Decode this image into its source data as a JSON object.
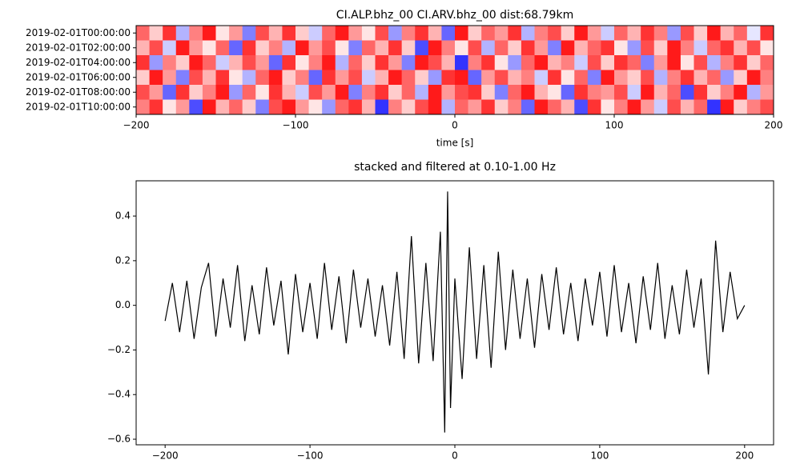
{
  "chart_data": [
    {
      "type": "heatmap",
      "title": "CI.ALP.bhz_00 CI.ARV.bhz_00  dist:68.79km",
      "xlabel": "time [s]",
      "categories": [
        "2019-02-01T00:00:00",
        "2019-02-01T02:00:00",
        "2019-02-01T04:00:00",
        "2019-02-01T06:00:00",
        "2019-02-01T08:00:00",
        "2019-02-01T10:00:00"
      ],
      "colormap": [
        "#0000ff",
        "#ffffff",
        "#ff0000"
      ],
      "clim": [
        -1,
        1
      ],
      "values": [
        [
          0.6,
          0.2,
          0.8,
          -0.3,
          0.5,
          0.9,
          0.1,
          0.4,
          -0.5,
          0.7,
          0.3,
          0.8,
          0.2,
          -0.2,
          0.6,
          0.9,
          0.4,
          0.1,
          0.7,
          -0.4,
          0.5,
          0.8,
          0.3,
          -0.6,
          0.9,
          0.2,
          0.6,
          0.4,
          0.8,
          -0.3,
          0.5,
          0.7,
          0.2,
          0.9,
          0.4,
          -0.2,
          0.6,
          0.3,
          0.8,
          0.5,
          -0.4,
          0.7,
          0.2,
          0.9,
          0.3,
          0.6,
          -0.1,
          0.8
        ],
        [
          0.3,
          0.7,
          -0.2,
          0.9,
          0.4,
          0.1,
          0.6,
          -0.6,
          0.8,
          0.2,
          0.5,
          -0.3,
          0.9,
          0.4,
          0.7,
          0.1,
          -0.5,
          0.6,
          0.3,
          0.8,
          0.2,
          -0.7,
          0.9,
          0.5,
          0.1,
          0.7,
          -0.3,
          0.6,
          0.2,
          0.8,
          0.4,
          -0.5,
          0.9,
          0.3,
          0.6,
          0.8,
          0.1,
          -0.4,
          0.7,
          0.2,
          0.9,
          0.5,
          -0.2,
          0.6,
          0.8,
          0.3,
          0.7,
          0.1
        ],
        [
          0.8,
          -0.4,
          0.5,
          0.2,
          0.9,
          0.6,
          -0.2,
          0.3,
          0.7,
          0.4,
          -0.6,
          0.8,
          0.1,
          0.5,
          0.9,
          -0.3,
          0.6,
          0.2,
          0.8,
          0.4,
          -0.5,
          0.9,
          0.7,
          0.3,
          -0.8,
          0.5,
          0.8,
          0.1,
          -0.4,
          0.6,
          0.9,
          0.3,
          0.5,
          -0.2,
          0.7,
          0.2,
          0.8,
          0.6,
          -0.5,
          0.4,
          0.9,
          0.1,
          0.7,
          -0.3,
          0.5,
          0.8,
          0.2,
          0.6
        ],
        [
          0.2,
          0.9,
          0.4,
          -0.5,
          0.7,
          0.3,
          0.8,
          0.1,
          -0.3,
          0.6,
          0.9,
          0.2,
          0.5,
          -0.6,
          0.8,
          0.4,
          0.7,
          -0.2,
          0.3,
          0.9,
          0.6,
          0.2,
          -0.4,
          0.8,
          0.9,
          -0.6,
          0.4,
          0.7,
          0.3,
          0.5,
          -0.2,
          0.8,
          0.1,
          0.6,
          -0.5,
          0.9,
          0.4,
          0.2,
          0.7,
          -0.3,
          0.5,
          0.8,
          0.3,
          0.6,
          -0.4,
          0.2,
          0.9,
          0.5
        ],
        [
          0.7,
          0.4,
          -0.6,
          0.8,
          0.2,
          0.5,
          0.9,
          -0.4,
          0.6,
          0.1,
          0.8,
          0.3,
          -0.2,
          0.7,
          0.4,
          0.9,
          -0.5,
          0.5,
          0.8,
          0.2,
          0.6,
          -0.3,
          0.9,
          0.4,
          0.7,
          0.8,
          0.2,
          -0.5,
          0.6,
          0.9,
          0.3,
          0.1,
          -0.6,
          0.8,
          0.5,
          0.4,
          0.7,
          -0.2,
          0.9,
          0.3,
          0.6,
          -0.7,
          0.8,
          0.2,
          0.5,
          0.9,
          -0.3,
          0.4
        ],
        [
          0.5,
          0.8,
          0.1,
          0.4,
          -0.7,
          0.9,
          0.3,
          0.6,
          0.2,
          -0.5,
          0.7,
          0.9,
          0.4,
          0.1,
          -0.4,
          0.6,
          0.8,
          0.3,
          -0.8,
          0.5,
          0.2,
          0.7,
          0.9,
          -0.3,
          0.6,
          0.4,
          0.8,
          0.2,
          0.5,
          -0.6,
          0.9,
          0.6,
          0.3,
          -0.7,
          0.8,
          0.1,
          0.5,
          0.9,
          0.4,
          -0.2,
          0.7,
          0.3,
          0.6,
          -0.8,
          0.9,
          0.2,
          0.5,
          0.7
        ]
      ],
      "xlim": [
        -200,
        200
      ],
      "xticks": [
        {
          "value": -200,
          "label": "−200"
        },
        {
          "value": -100,
          "label": "−100"
        },
        0,
        100,
        200
      ]
    },
    {
      "type": "line",
      "title": "stacked and filtered at 0.10-1.00 Hz",
      "color": "#000000",
      "x": [
        -200,
        -195,
        -190,
        -185,
        -180,
        -175,
        -170,
        -165,
        -160,
        -155,
        -150,
        -145,
        -140,
        -135,
        -130,
        -125,
        -120,
        -115,
        -110,
        -105,
        -100,
        -95,
        -90,
        -85,
        -80,
        -75,
        -70,
        -65,
        -60,
        -55,
        -50,
        -45,
        -40,
        -35,
        -30,
        -25,
        -20,
        -15,
        -10,
        -7,
        -5,
        -3,
        0,
        5,
        10,
        15,
        20,
        25,
        30,
        35,
        40,
        45,
        50,
        55,
        60,
        65,
        70,
        75,
        80,
        85,
        90,
        95,
        100,
        105,
        110,
        115,
        120,
        125,
        130,
        135,
        140,
        145,
        150,
        155,
        160,
        165,
        170,
        175,
        180,
        185,
        190,
        195,
        200
      ],
      "values": [
        -0.07,
        0.1,
        -0.12,
        0.11,
        -0.15,
        0.08,
        0.19,
        -0.14,
        0.12,
        -0.1,
        0.18,
        -0.16,
        0.09,
        -0.13,
        0.17,
        -0.09,
        0.11,
        -0.22,
        0.14,
        -0.12,
        0.1,
        -0.15,
        0.19,
        -0.11,
        0.13,
        -0.17,
        0.16,
        -0.1,
        0.12,
        -0.14,
        0.09,
        -0.18,
        0.15,
        -0.24,
        0.31,
        -0.26,
        0.19,
        -0.25,
        0.33,
        -0.57,
        0.51,
        -0.46,
        0.12,
        -0.33,
        0.26,
        -0.24,
        0.18,
        -0.28,
        0.24,
        -0.2,
        0.16,
        -0.15,
        0.12,
        -0.19,
        0.14,
        -0.11,
        0.17,
        -0.13,
        0.1,
        -0.16,
        0.12,
        -0.09,
        0.15,
        -0.14,
        0.18,
        -0.12,
        0.1,
        -0.17,
        0.13,
        -0.11,
        0.19,
        -0.15,
        0.09,
        -0.13,
        0.16,
        -0.1,
        0.12,
        -0.31,
        0.29,
        -0.12,
        0.15,
        -0.06,
        0.0
      ],
      "xlim": [
        -220,
        220
      ],
      "ylim": [
        -0.625,
        0.558
      ],
      "xticks": [
        {
          "value": -200,
          "label": "−200"
        },
        {
          "value": -100,
          "label": "−100"
        },
        0,
        100,
        200
      ],
      "yticks": [
        {
          "value": -0.6,
          "label": "−0.6"
        },
        {
          "value": -0.4,
          "label": "−0.4"
        },
        {
          "value": -0.2,
          "label": "−0.2"
        },
        {
          "value": 0,
          "label": "0.0"
        },
        0.2,
        0.4
      ]
    }
  ]
}
